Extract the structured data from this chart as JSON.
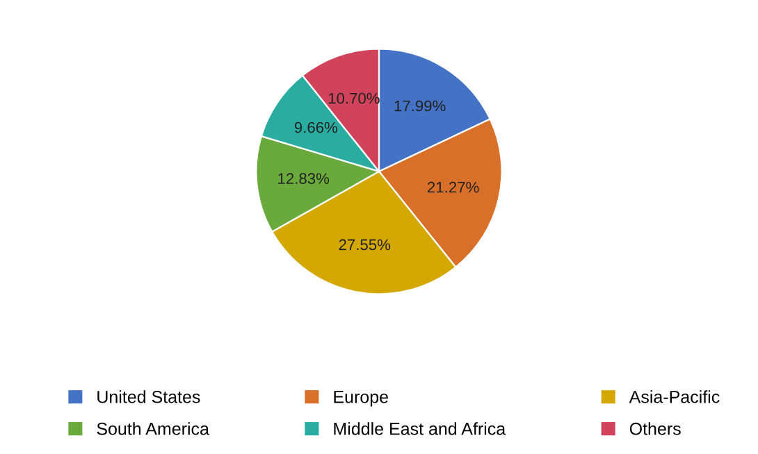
{
  "chart_data": {
    "type": "pie",
    "categories": [
      "United States",
      "Europe",
      "Asia-Pacific",
      "South America",
      "Middle East and Africa",
      "Others"
    ],
    "values": [
      17.99,
      21.27,
      27.55,
      12.83,
      9.66,
      10.7
    ],
    "value_labels": [
      "17.99%",
      "21.27%",
      "27.55%",
      "12.83%",
      "9.66%",
      "10.70%"
    ],
    "colors": [
      "#4472c4",
      "#d9702a",
      "#d4a800",
      "#6aa93b",
      "#2aada0",
      "#d0435b"
    ],
    "legend": "bottom"
  }
}
